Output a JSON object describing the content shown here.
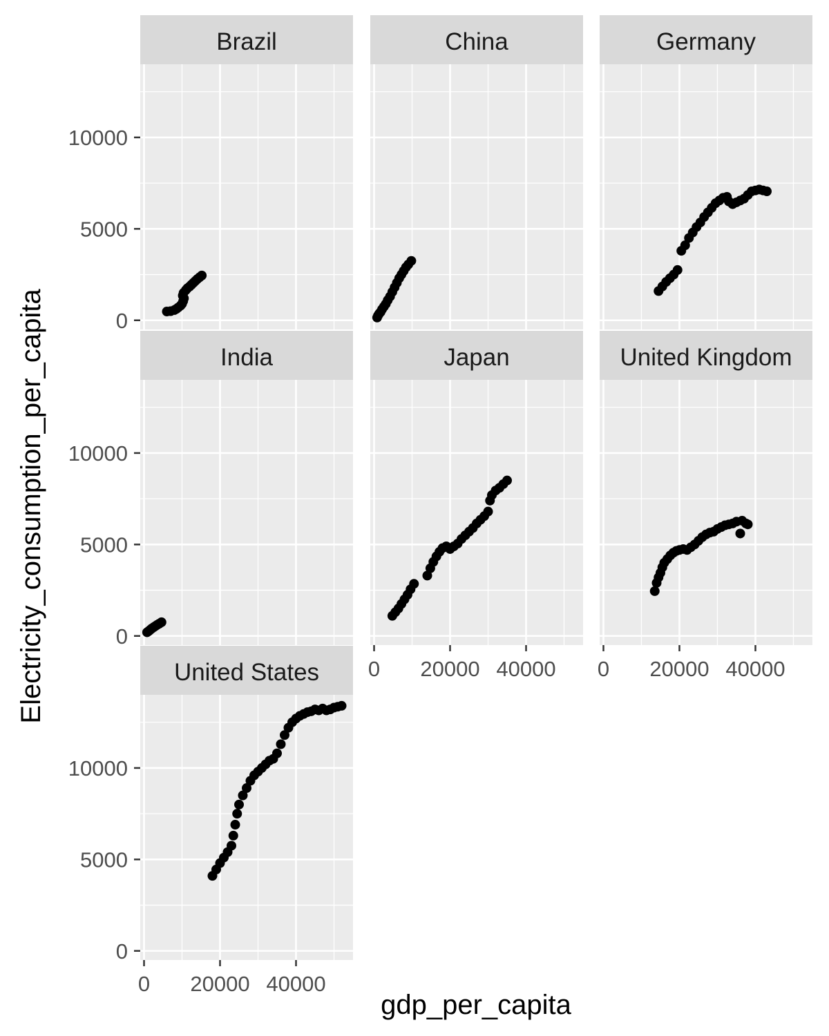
{
  "chart_data": {
    "type": "scatter",
    "xlabel": "gdp_per_capita",
    "ylabel": "Electricity_consumption_per_capita",
    "xlim": [
      -1000,
      55000
    ],
    "ylim": [
      -500,
      14000
    ],
    "x_ticks": [
      0,
      20000,
      40000
    ],
    "x_tick_labels": [
      "0",
      "20000",
      "40000"
    ],
    "y_ticks": [
      0,
      5000,
      10000
    ],
    "y_tick_labels": [
      "0",
      "5000",
      "10000"
    ],
    "grid": true,
    "point_color": "#000000",
    "panel_background": "#ebebeb",
    "strip_background": "#d9d9d9",
    "facets": [
      {
        "name": "Brazil",
        "points": [
          [
            6000,
            480
          ],
          [
            7000,
            500
          ],
          [
            8000,
            560
          ],
          [
            8500,
            620
          ],
          [
            9000,
            700
          ],
          [
            9600,
            800
          ],
          [
            10000,
            900
          ],
          [
            10300,
            1050
          ],
          [
            10500,
            1200
          ],
          [
            10200,
            1350
          ],
          [
            10400,
            1500
          ],
          [
            11000,
            1650
          ],
          [
            11400,
            1750
          ],
          [
            12000,
            1850
          ],
          [
            12500,
            1950
          ],
          [
            13000,
            2050
          ],
          [
            13500,
            2150
          ],
          [
            14000,
            2250
          ],
          [
            14600,
            2350
          ],
          [
            15200,
            2450
          ]
        ]
      },
      {
        "name": "China",
        "points": [
          [
            800,
            150
          ],
          [
            1000,
            250
          ],
          [
            1300,
            350
          ],
          [
            1700,
            450
          ],
          [
            2100,
            600
          ],
          [
            2600,
            750
          ],
          [
            3100,
            900
          ],
          [
            3600,
            1100
          ],
          [
            4200,
            1300
          ],
          [
            4800,
            1550
          ],
          [
            5400,
            1800
          ],
          [
            6000,
            2050
          ],
          [
            6600,
            2300
          ],
          [
            7200,
            2500
          ],
          [
            7800,
            2700
          ],
          [
            8400,
            2900
          ],
          [
            9000,
            3050
          ],
          [
            9800,
            3250
          ]
        ]
      },
      {
        "name": "Germany",
        "points": [
          [
            14500,
            1600
          ],
          [
            15500,
            1850
          ],
          [
            16500,
            2100
          ],
          [
            17500,
            2300
          ],
          [
            18500,
            2500
          ],
          [
            19500,
            2750
          ],
          [
            20500,
            3800
          ],
          [
            21500,
            4100
          ],
          [
            22500,
            4500
          ],
          [
            23500,
            4800
          ],
          [
            24500,
            5100
          ],
          [
            25500,
            5350
          ],
          [
            26500,
            5650
          ],
          [
            27500,
            5900
          ],
          [
            28500,
            6150
          ],
          [
            29500,
            6400
          ],
          [
            30500,
            6550
          ],
          [
            31500,
            6700
          ],
          [
            32500,
            6750
          ],
          [
            33000,
            6500
          ],
          [
            34000,
            6350
          ],
          [
            35000,
            6450
          ],
          [
            36000,
            6550
          ],
          [
            37000,
            6650
          ],
          [
            38000,
            6850
          ],
          [
            39000,
            7050
          ],
          [
            40000,
            7100
          ],
          [
            41000,
            7150
          ],
          [
            42000,
            7100
          ],
          [
            43000,
            7050
          ]
        ]
      },
      {
        "name": "India",
        "points": [
          [
            800,
            200
          ],
          [
            1200,
            260
          ],
          [
            1600,
            330
          ],
          [
            2000,
            400
          ],
          [
            2500,
            470
          ],
          [
            3000,
            540
          ],
          [
            3500,
            610
          ],
          [
            4000,
            670
          ],
          [
            4600,
            750
          ]
        ]
      },
      {
        "name": "Japan",
        "points": [
          [
            4800,
            1100
          ],
          [
            5600,
            1300
          ],
          [
            6400,
            1500
          ],
          [
            7200,
            1750
          ],
          [
            8000,
            2000
          ],
          [
            8800,
            2250
          ],
          [
            9600,
            2550
          ],
          [
            10500,
            2850
          ],
          [
            14000,
            3300
          ],
          [
            14800,
            3700
          ],
          [
            15600,
            4050
          ],
          [
            16400,
            4350
          ],
          [
            17200,
            4600
          ],
          [
            18000,
            4800
          ],
          [
            19000,
            4900
          ],
          [
            20000,
            4750
          ],
          [
            21000,
            4900
          ],
          [
            22000,
            5050
          ],
          [
            23000,
            5300
          ],
          [
            24000,
            5500
          ],
          [
            25000,
            5700
          ],
          [
            26000,
            5900
          ],
          [
            27000,
            6150
          ],
          [
            28000,
            6350
          ],
          [
            29000,
            6550
          ],
          [
            30000,
            6800
          ],
          [
            30500,
            7400
          ],
          [
            31000,
            7700
          ],
          [
            32000,
            7950
          ],
          [
            33000,
            8100
          ],
          [
            34000,
            8300
          ],
          [
            35000,
            8500
          ]
        ]
      },
      {
        "name": "United Kingdom",
        "points": [
          [
            13500,
            2450
          ],
          [
            14000,
            2900
          ],
          [
            14500,
            3200
          ],
          [
            15000,
            3450
          ],
          [
            15500,
            3750
          ],
          [
            16000,
            4000
          ],
          [
            16800,
            4200
          ],
          [
            17600,
            4400
          ],
          [
            18400,
            4550
          ],
          [
            19200,
            4650
          ],
          [
            20000,
            4700
          ],
          [
            21000,
            4750
          ],
          [
            22000,
            4700
          ],
          [
            23000,
            4850
          ],
          [
            24000,
            5000
          ],
          [
            25000,
            5200
          ],
          [
            26000,
            5400
          ],
          [
            27000,
            5550
          ],
          [
            28000,
            5650
          ],
          [
            29000,
            5700
          ],
          [
            30000,
            5850
          ],
          [
            31000,
            5950
          ],
          [
            32000,
            6050
          ],
          [
            33000,
            6100
          ],
          [
            34000,
            6150
          ],
          [
            35000,
            6250
          ],
          [
            36000,
            5600
          ],
          [
            36500,
            6300
          ],
          [
            37500,
            6150
          ],
          [
            38000,
            6100
          ]
        ]
      },
      {
        "name": "United States",
        "points": [
          [
            18000,
            4100
          ],
          [
            19000,
            4450
          ],
          [
            20000,
            4800
          ],
          [
            21000,
            5100
          ],
          [
            22000,
            5400
          ],
          [
            23000,
            5750
          ],
          [
            23500,
            6300
          ],
          [
            24000,
            6900
          ],
          [
            24500,
            7500
          ],
          [
            25000,
            8000
          ],
          [
            26000,
            8500
          ],
          [
            27000,
            8900
          ],
          [
            28000,
            9300
          ],
          [
            29000,
            9600
          ],
          [
            30000,
            9800
          ],
          [
            31000,
            10000
          ],
          [
            32000,
            10200
          ],
          [
            33000,
            10400
          ],
          [
            34000,
            10500
          ],
          [
            35000,
            10800
          ],
          [
            36000,
            11300
          ],
          [
            37000,
            11800
          ],
          [
            38000,
            12200
          ],
          [
            39000,
            12500
          ],
          [
            40000,
            12700
          ],
          [
            41000,
            12850
          ],
          [
            42000,
            12950
          ],
          [
            43000,
            13050
          ],
          [
            44000,
            13100
          ],
          [
            45000,
            13200
          ],
          [
            46000,
            13150
          ],
          [
            47000,
            13250
          ],
          [
            48000,
            13150
          ],
          [
            49000,
            13200
          ],
          [
            50000,
            13300
          ],
          [
            51000,
            13350
          ],
          [
            52000,
            13400
          ]
        ]
      }
    ]
  }
}
